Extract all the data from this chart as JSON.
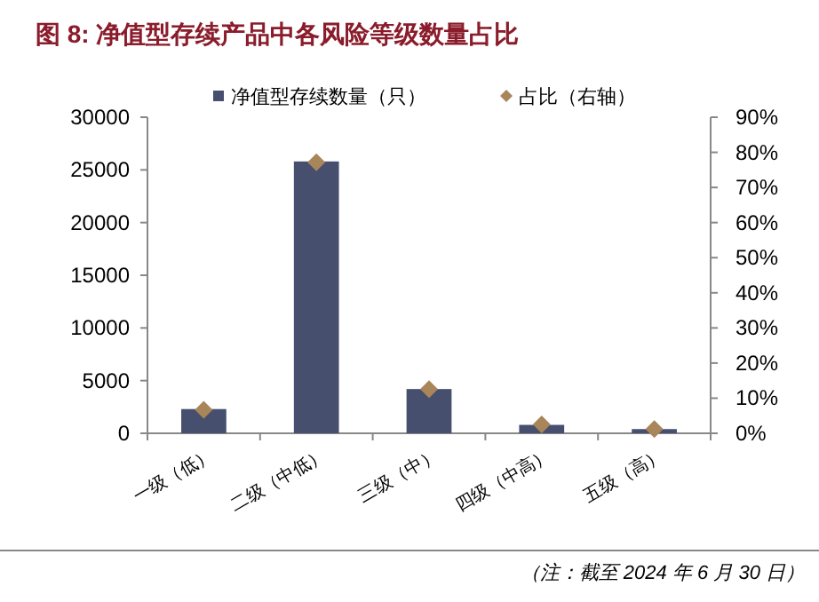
{
  "chart_data": {
    "type": "bar",
    "title": "图 8: 净值型存续产品中各风险等级数量占比",
    "categories": [
      "一级（低）",
      "二级（中低）",
      "三级（中）",
      "四级（中高）",
      "五级（高）"
    ],
    "series": [
      {
        "name": "净值型存续数量（只）",
        "color": "#474f6e",
        "values": [
          2300,
          25800,
          4200,
          800,
          400
        ]
      },
      {
        "name": "占比（右轴）",
        "type": "scatter",
        "axis": "y2",
        "marker": "diamond",
        "color": "#a9855a",
        "values": [
          6.7,
          77.2,
          12.6,
          2.5,
          1.2
        ]
      }
    ],
    "ylim": [
      0,
      30000
    ],
    "yticks": [
      0,
      5000,
      10000,
      15000,
      20000,
      25000,
      30000
    ],
    "y2lim": [
      0,
      90
    ],
    "y2ticks": [
      {
        "value": 0,
        "label": "0%"
      },
      {
        "value": 10,
        "label": "10%"
      },
      {
        "value": 20,
        "label": "20%"
      },
      {
        "value": 30,
        "label": "30%"
      },
      {
        "value": 40,
        "label": "40%"
      },
      {
        "value": 50,
        "label": "50%"
      },
      {
        "value": 60,
        "label": "60%"
      },
      {
        "value": 70,
        "label": "70%"
      },
      {
        "value": 80,
        "label": "80%"
      },
      {
        "value": 90,
        "label": "90%"
      }
    ],
    "legend": "top",
    "annotations": [
      "（注：截至 2024 年 6 月 30 日）"
    ]
  }
}
